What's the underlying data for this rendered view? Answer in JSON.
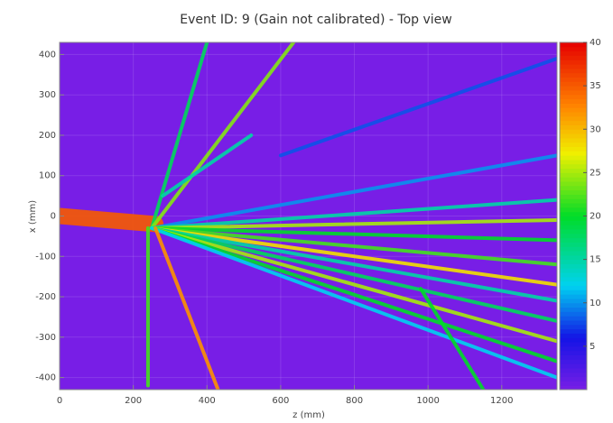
{
  "chart_data": {
    "type": "heatmap",
    "title": "Event ID: 9 (Gain not calibrated) - Top view",
    "xlabel": "z (mm)",
    "ylabel": "x (mm)",
    "xlim": [
      0,
      1350
    ],
    "ylim": [
      -430,
      430
    ],
    "xticks": [
      0,
      200,
      400,
      600,
      800,
      1000,
      1200
    ],
    "yticks": [
      -400,
      -300,
      -200,
      -100,
      0,
      100,
      200,
      300,
      400
    ],
    "clim": [
      0,
      40
    ],
    "cticks": [
      5,
      10,
      15,
      20,
      25,
      30,
      35,
      40
    ],
    "grid": true,
    "tracks": [
      {
        "x": [
          0,
          260
        ],
        "y": [
          0,
          -20
        ],
        "value": 35
      },
      {
        "x": [
          250,
          400
        ],
        "y": [
          -30,
          430
        ],
        "value": 18
      },
      {
        "x": [
          250,
          635
        ],
        "y": [
          -30,
          430
        ],
        "value": 24
      },
      {
        "x": [
          600,
          1350
        ],
        "y": [
          150,
          390
        ],
        "value": 8
      },
      {
        "x": [
          280,
          520
        ],
        "y": [
          50,
          200
        ],
        "value": 15
      },
      {
        "x": [
          250,
          1350
        ],
        "y": [
          -30,
          150
        ],
        "value": 10
      },
      {
        "x": [
          250,
          1350
        ],
        "y": [
          -30,
          40
        ],
        "value": 15
      },
      {
        "x": [
          250,
          1350
        ],
        "y": [
          -30,
          -10
        ],
        "value": 25
      },
      {
        "x": [
          250,
          1350
        ],
        "y": [
          -30,
          -60
        ],
        "value": 20
      },
      {
        "x": [
          250,
          1350
        ],
        "y": [
          -30,
          -120
        ],
        "value": 22
      },
      {
        "x": [
          250,
          1350
        ],
        "y": [
          -30,
          -170
        ],
        "value": 28
      },
      {
        "x": [
          250,
          1350
        ],
        "y": [
          -30,
          -210
        ],
        "value": 15
      },
      {
        "x": [
          250,
          1350
        ],
        "y": [
          -30,
          -260
        ],
        "value": 18
      },
      {
        "x": [
          250,
          1350
        ],
        "y": [
          -30,
          -310
        ],
        "value": 25
      },
      {
        "x": [
          250,
          1350
        ],
        "y": [
          -30,
          -360
        ],
        "value": 20
      },
      {
        "x": [
          250,
          1350
        ],
        "y": [
          -30,
          -400
        ],
        "value": 12
      },
      {
        "x": [
          240,
          240
        ],
        "y": [
          -30,
          -420
        ],
        "value": 22
      },
      {
        "x": [
          260,
          430
        ],
        "y": [
          -30,
          -430
        ],
        "value": 32
      },
      {
        "x": [
          980,
          1150
        ],
        "y": [
          -180,
          -430
        ],
        "value": 20
      }
    ]
  }
}
